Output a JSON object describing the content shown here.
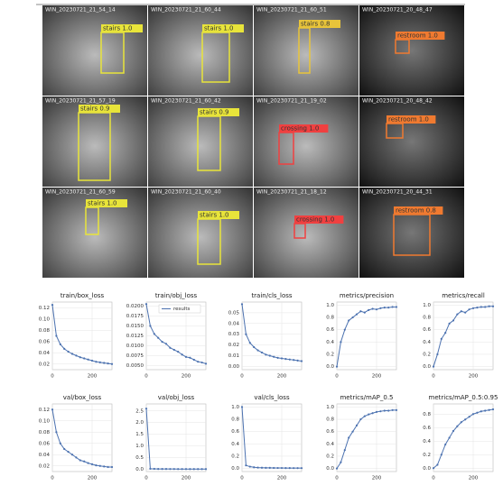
{
  "figure": {
    "tiles": [
      {
        "filename": "WIN_20230721_21_54_14",
        "label": "stairs 1.0",
        "color": "#e8e43a"
      },
      {
        "filename": "WIN_20230721_21_60_44",
        "label": "stairs 1.0",
        "color": "#e8e43a"
      },
      {
        "filename": "WIN_20230721_21_60_51",
        "label": "stairs 0.8",
        "color": "#e8c43a"
      },
      {
        "filename": "WIN_20230721_20_48_47",
        "label": "restroom 1.0",
        "color": "#f07a30"
      },
      {
        "filename": "WIN_20230721_21_57_19",
        "label": "stairs 0.9",
        "color": "#e8e43a"
      },
      {
        "filename": "WIN_20230721_21_60_42",
        "label": "stairs 0.9",
        "color": "#e8e43a"
      },
      {
        "filename": "WIN_20230721_21_19_02",
        "label": "crossing 1.0",
        "color": "#f04040"
      },
      {
        "filename": "WIN_20230721_20_48_42",
        "label": "restroom 1.0",
        "color": "#f07a30"
      },
      {
        "filename": "WIN_20230721_21_60_59",
        "label": "stairs 1.0",
        "color": "#e8e43a"
      },
      {
        "filename": "WIN_20230721_21_60_40",
        "label": "stairs 1.0",
        "color": "#e8e43a"
      },
      {
        "filename": "WIN_20230721_21_18_12",
        "label": "crossing 1.0",
        "color": "#f04040"
      },
      {
        "filename": "WIN_20230721_20_44_31",
        "label": "restroom 0.8",
        "color": "#f07a30"
      }
    ]
  },
  "chart_data": [
    {
      "type": "line",
      "title": "train/box_loss",
      "x": [
        0,
        20,
        40,
        60,
        80,
        100,
        120,
        140,
        160,
        180,
        200,
        220,
        240,
        260,
        280,
        300
      ],
      "series": [
        {
          "color": "#4c72b0",
          "values": [
            0.125,
            0.07,
            0.055,
            0.047,
            0.042,
            0.038,
            0.035,
            0.032,
            0.03,
            0.028,
            0.026,
            0.024,
            0.023,
            0.022,
            0.021,
            0.02
          ]
        }
      ],
      "xlim": [
        0,
        300
      ],
      "xticks": [
        0,
        200
      ],
      "ylim": [
        0.01,
        0.13
      ],
      "yticks": [
        0.02,
        0.04,
        0.06,
        0.08,
        {
          "value": 0.1,
          "label": "0.10"
        },
        0.12
      ],
      "grid": true
    },
    {
      "type": "line",
      "title": "train/obj_loss",
      "x": [
        0,
        20,
        40,
        60,
        80,
        100,
        120,
        140,
        160,
        180,
        200,
        220,
        240,
        260,
        280,
        300
      ],
      "series": [
        {
          "name": "results",
          "color": "#4c72b0",
          "values": [
            0.0205,
            0.015,
            0.013,
            0.012,
            0.011,
            0.0105,
            0.0095,
            0.009,
            0.0085,
            0.0078,
            0.0072,
            0.007,
            0.0065,
            0.006,
            0.0058,
            0.0055
          ]
        }
      ],
      "xlim": [
        0,
        300
      ],
      "xticks": [
        0,
        200
      ],
      "ylim": [
        0.004,
        0.021
      ],
      "yticks": [
        {
          "value": 0.005,
          "label": "0.0050"
        },
        0.0075,
        {
          "value": 0.01,
          "label": "0.0100"
        },
        0.0125,
        {
          "value": 0.015,
          "label": "0.0150"
        },
        0.0175,
        {
          "value": 0.02,
          "label": "0.0200"
        }
      ],
      "grid": true
    },
    {
      "type": "line",
      "title": "train/cls_loss",
      "x": [
        0,
        20,
        40,
        60,
        80,
        100,
        120,
        140,
        160,
        180,
        200,
        220,
        240,
        260,
        280,
        300
      ],
      "series": [
        {
          "color": "#4c72b0",
          "values": [
            0.058,
            0.03,
            0.022,
            0.018,
            0.015,
            0.013,
            0.011,
            0.01,
            0.009,
            0.008,
            0.0075,
            0.007,
            0.0065,
            0.006,
            0.0055,
            0.005
          ]
        }
      ],
      "xlim": [
        0,
        300
      ],
      "xticks": [
        0,
        200
      ],
      "ylim": [
        -0.003,
        0.06
      ],
      "yticks": [
        {
          "value": 0,
          "label": "0.00"
        },
        0.01,
        0.02,
        0.03,
        0.04,
        0.05
      ],
      "grid": true
    },
    {
      "type": "line",
      "title": "metrics/precision",
      "x": [
        0,
        20,
        40,
        60,
        80,
        100,
        120,
        140,
        160,
        180,
        200,
        220,
        240,
        260,
        280,
        300
      ],
      "series": [
        {
          "color": "#4c72b0",
          "values": [
            0,
            0.4,
            0.6,
            0.75,
            0.8,
            0.85,
            0.9,
            0.88,
            0.92,
            0.94,
            0.93,
            0.95,
            0.96,
            0.96,
            0.97,
            0.97
          ]
        }
      ],
      "xlim": [
        0,
        300
      ],
      "xticks": [
        0,
        200
      ],
      "ylim": [
        -0.05,
        1.05
      ],
      "yticks": [
        {
          "value": 0,
          "label": "0.0"
        },
        0.2,
        0.4,
        0.6,
        0.8,
        {
          "value": 1,
          "label": "1.0"
        }
      ],
      "grid": true
    },
    {
      "type": "line",
      "title": "metrics/recall",
      "x": [
        0,
        20,
        40,
        60,
        80,
        100,
        120,
        140,
        160,
        180,
        200,
        220,
        240,
        260,
        280,
        300
      ],
      "series": [
        {
          "color": "#4c72b0",
          "values": [
            0,
            0.2,
            0.45,
            0.55,
            0.7,
            0.75,
            0.85,
            0.9,
            0.88,
            0.93,
            0.95,
            0.96,
            0.97,
            0.97,
            0.98,
            0.98
          ]
        }
      ],
      "xlim": [
        0,
        300
      ],
      "xticks": [
        0,
        200
      ],
      "ylim": [
        -0.05,
        1.05
      ],
      "yticks": [
        {
          "value": 0,
          "label": "0.0"
        },
        0.2,
        0.4,
        0.6,
        0.8,
        {
          "value": 1,
          "label": "1.0"
        }
      ],
      "grid": true
    },
    {
      "type": "line",
      "title": "val/box_loss",
      "x": [
        0,
        20,
        40,
        60,
        80,
        100,
        120,
        140,
        160,
        180,
        200,
        220,
        240,
        260,
        280,
        300
      ],
      "series": [
        {
          "color": "#4c72b0",
          "values": [
            0.12,
            0.08,
            0.06,
            0.05,
            0.045,
            0.04,
            0.035,
            0.03,
            0.028,
            0.025,
            0.023,
            0.021,
            0.02,
            0.019,
            0.018,
            0.018
          ]
        }
      ],
      "xlim": [
        0,
        300
      ],
      "xticks": [
        0,
        200
      ],
      "ylim": [
        0.01,
        0.13
      ],
      "yticks": [
        0.02,
        0.04,
        0.06,
        0.08,
        {
          "value": 0.1,
          "label": "0.10"
        },
        0.12
      ],
      "grid": true
    },
    {
      "type": "line",
      "title": "val/obj_loss",
      "x": [
        0,
        20,
        40,
        60,
        80,
        100,
        120,
        140,
        160,
        180,
        200,
        220,
        240,
        260,
        280,
        300
      ],
      "series": [
        {
          "color": "#4c72b0",
          "values": [
            2.6,
            0.02,
            0.015,
            0.012,
            0.01,
            0.01,
            0.009,
            0.009,
            0.008,
            0.008,
            0.008,
            0.007,
            0.007,
            0.007,
            0.007,
            0.007
          ]
        }
      ],
      "xlim": [
        0,
        300
      ],
      "xticks": [
        0,
        200
      ],
      "ylim": [
        -0.1,
        2.8
      ],
      "yticks": [
        {
          "value": 0,
          "label": "0.0"
        },
        0.5,
        {
          "value": 1,
          "label": "1.0"
        },
        1.5,
        {
          "value": 2,
          "label": "2.0"
        },
        2.5
      ],
      "grid": true
    },
    {
      "type": "line",
      "title": "val/cls_loss",
      "x": [
        0,
        20,
        40,
        60,
        80,
        100,
        120,
        140,
        160,
        180,
        200,
        220,
        240,
        260,
        280,
        300
      ],
      "series": [
        {
          "color": "#4c72b0",
          "values": [
            1,
            0.05,
            0.03,
            0.02,
            0.015,
            0.012,
            0.01,
            0.01,
            0.009,
            0.008,
            0.008,
            0.007,
            0.007,
            0.006,
            0.006,
            0.006
          ]
        }
      ],
      "xlim": [
        0,
        300
      ],
      "xticks": [
        0,
        200
      ],
      "ylim": [
        -0.05,
        1.05
      ],
      "yticks": [
        {
          "value": 0,
          "label": "0.0"
        },
        0.2,
        0.4,
        0.6,
        0.8,
        {
          "value": 1,
          "label": "1.0"
        }
      ],
      "grid": true
    },
    {
      "type": "line",
      "title": "metrics/mAP_0.5",
      "x": [
        0,
        20,
        40,
        60,
        80,
        100,
        120,
        140,
        160,
        180,
        200,
        220,
        240,
        260,
        280,
        300
      ],
      "series": [
        {
          "color": "#4c72b0",
          "values": [
            0,
            0.1,
            0.3,
            0.5,
            0.6,
            0.7,
            0.8,
            0.85,
            0.88,
            0.9,
            0.92,
            0.93,
            0.94,
            0.94,
            0.95,
            0.95
          ]
        }
      ],
      "xlim": [
        0,
        300
      ],
      "xticks": [
        0,
        200
      ],
      "ylim": [
        -0.05,
        1.05
      ],
      "yticks": [
        {
          "value": 0,
          "label": "0.0"
        },
        0.2,
        0.4,
        0.6,
        0.8,
        {
          "value": 1,
          "label": "1.0"
        }
      ],
      "grid": true
    },
    {
      "type": "line",
      "title": "metrics/mAP_0.5:0.95",
      "x": [
        0,
        20,
        40,
        60,
        80,
        100,
        120,
        140,
        160,
        180,
        200,
        220,
        240,
        260,
        280,
        300
      ],
      "series": [
        {
          "color": "#4c72b0",
          "values": [
            0,
            0.05,
            0.2,
            0.35,
            0.45,
            0.55,
            0.62,
            0.68,
            0.72,
            0.76,
            0.8,
            0.82,
            0.84,
            0.85,
            0.86,
            0.87
          ]
        }
      ],
      "xlim": [
        0,
        300
      ],
      "xticks": [
        0,
        200
      ],
      "ylim": [
        -0.05,
        0.95
      ],
      "yticks": [
        {
          "value": 0,
          "label": "0.0"
        },
        0.2,
        0.4,
        0.6,
        0.8
      ],
      "grid": true
    }
  ]
}
